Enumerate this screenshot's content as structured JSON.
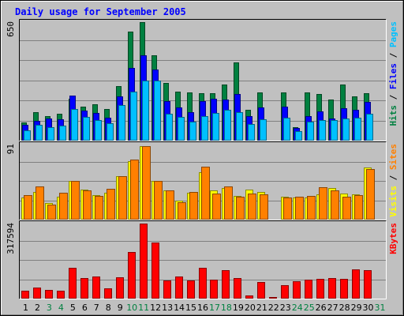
{
  "chart_data": {
    "type": "bar",
    "title": "Daily usage for September 2005",
    "days": [
      "1",
      "2",
      "3",
      "4",
      "5",
      "6",
      "7",
      "8",
      "9",
      "10",
      "11",
      "12",
      "13",
      "14",
      "15",
      "16",
      "17",
      "18",
      "19",
      "20",
      "21",
      "22",
      "23",
      "24",
      "25",
      "26",
      "27",
      "28",
      "29",
      "30",
      "31"
    ],
    "weekend_days": [
      3,
      4,
      10,
      11,
      17,
      18,
      24,
      25,
      31
    ],
    "panels": [
      {
        "id": "top",
        "ymax": 650,
        "max_label": "650",
        "legend": [
          {
            "label": "Hits",
            "color": "#008040"
          },
          {
            "label": "Files",
            "color": "#0000ff"
          },
          {
            "label": "Pages",
            "color": "#00c0ff"
          }
        ],
        "series": [
          {
            "name": "Hits",
            "color": "#008040",
            "values": [
              101,
              158,
              135,
              149,
              229,
              187,
              200,
              173,
              300,
              596,
              650,
              467,
              318,
              268,
              266,
              262,
              262,
              309,
              429,
              171,
              263,
              0,
              265,
              73,
              263,
              256,
              225,
              309,
              241,
              258,
              0
            ]
          },
          {
            "name": "Files",
            "color": "#0000ff",
            "values": [
              86,
              110,
              123,
              119,
              249,
              163,
              150,
              125,
              244,
              398,
              469,
              390,
              216,
              184,
              158,
              218,
              230,
              225,
              254,
              136,
              181,
              0,
              187,
              68,
              135,
              160,
              120,
              177,
              167,
              214,
              0
            ]
          },
          {
            "name": "Pages",
            "color": "#00c0ff",
            "values": [
              56,
              85,
              73,
              83,
              172,
              132,
              112,
              94,
              196,
              267,
              329,
              331,
              149,
              128,
              104,
              133,
              152,
              171,
              154,
              93,
              117,
              0,
              126,
              53,
              102,
              113,
              111,
              122,
              127,
              147,
              0
            ]
          }
        ]
      },
      {
        "id": "middle",
        "ymax": 91,
        "max_label": "91",
        "legend": [
          {
            "label": "Visits",
            "color": "#ffff00"
          },
          {
            "label": "Sites",
            "color": "#ff8000"
          }
        ],
        "series": [
          {
            "name": "Visits",
            "color": "#ffff00",
            "values": [
              27,
              34,
              20,
              28,
              47,
              36,
              30,
              33,
              53,
              71,
              89,
              47,
              35,
              23,
              33,
              57,
              35,
              38,
              29,
              36,
              34,
              0,
              28,
              27,
              27,
              31,
              38,
              32,
              31,
              63,
              0
            ]
          },
          {
            "name": "Sites",
            "color": "#ff8000",
            "values": [
              30,
              40,
              18,
              33,
              47,
              35,
              29,
              37,
              53,
              73,
              89,
              47,
              35,
              21,
              34,
              64,
              32,
              40,
              28,
              32,
              31,
              0,
              27,
              28,
              29,
              39,
              35,
              28,
              30,
              61,
              0
            ]
          }
        ]
      },
      {
        "id": "bottom",
        "ymax": 317594,
        "max_label": "317594",
        "legend": [
          {
            "label": "KBytes",
            "color": "#ff0000"
          }
        ],
        "series": [
          {
            "name": "KBytes",
            "color": "#ff0000",
            "values": [
              35000,
              48000,
              36000,
              32000,
              130000,
              87000,
              92000,
              43000,
              89000,
              197000,
              317594,
              236000,
              78000,
              94000,
              78000,
              130000,
              80000,
              119000,
              86000,
              13000,
              70000,
              6500,
              58000,
              72000,
              81000,
              84000,
              87000,
              82000,
              125000,
              119000,
              0
            ]
          }
        ]
      }
    ]
  }
}
